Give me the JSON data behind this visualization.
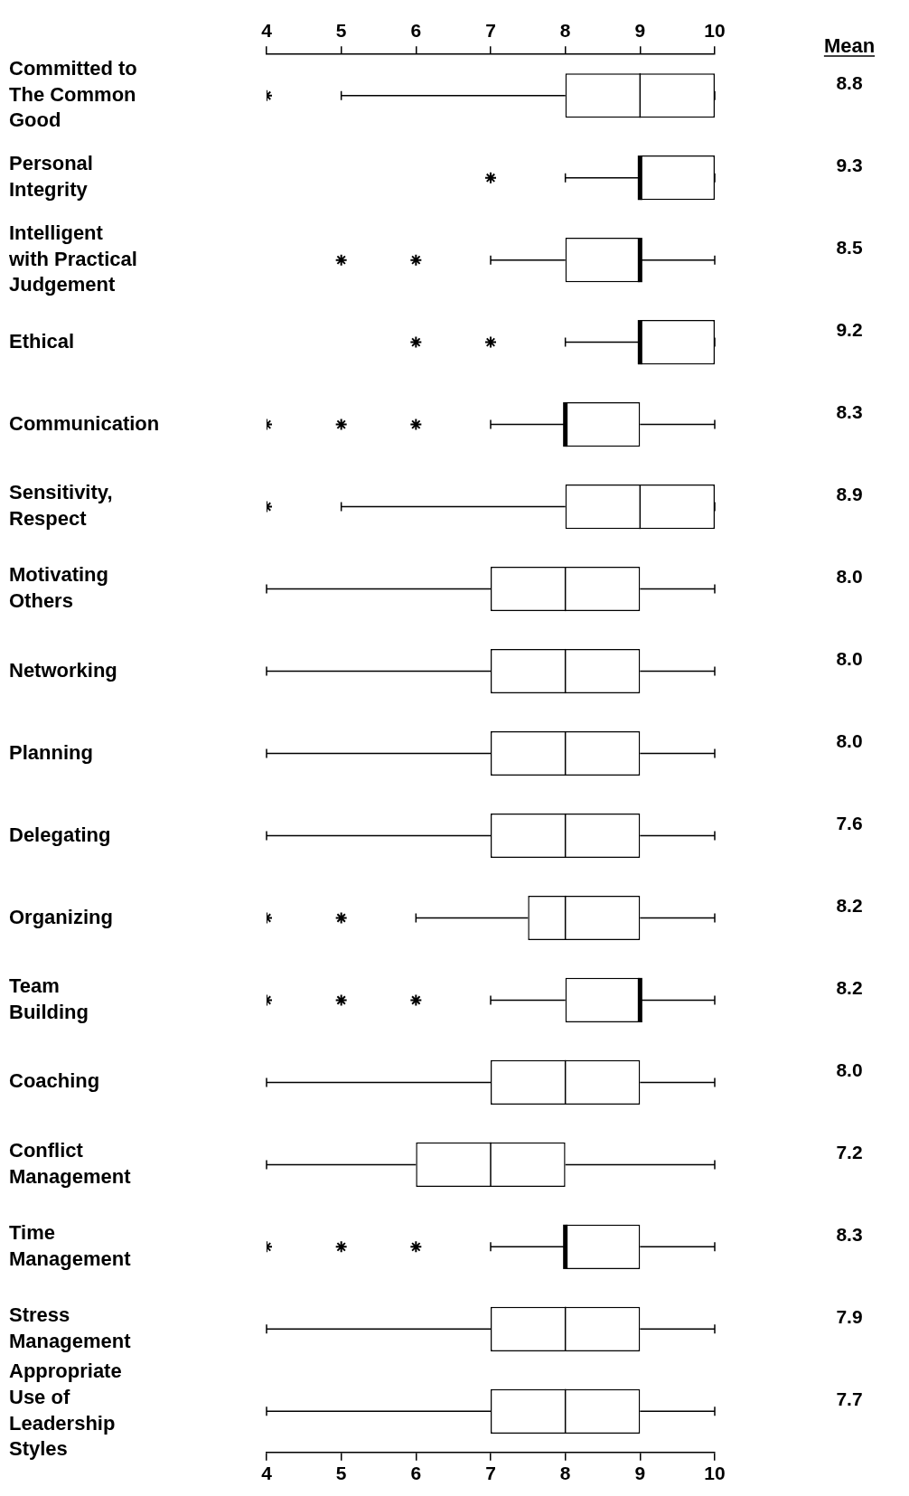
{
  "chart_data": {
    "type": "box",
    "orientation": "horizontal",
    "marker": "star",
    "legend": false,
    "grid": false,
    "categories": [
      "Committed to\nThe Common\nGood",
      "Personal\nIntegrity",
      "Intelligent\nwith Practical\nJudgement",
      "Ethical",
      "Communication",
      "Sensitivity,\nRespect",
      "Motivating\nOthers",
      "Networking",
      "Planning",
      "Delegating",
      "Organizing",
      "Team\nBuilding",
      "Coaching",
      "Conflict\nManagement",
      "Time\nManagement",
      "Stress\nManagement",
      "Appropriate\nUse of\nLeadership\nStyles"
    ],
    "boxes": [
      {
        "low": 5,
        "q1": 8,
        "median": 9,
        "q3": 10,
        "high": 10,
        "outliers": [
          4
        ]
      },
      {
        "low": 8,
        "q1": 9,
        "median": 9,
        "q3": 10,
        "high": 10,
        "outliers": [
          7
        ]
      },
      {
        "low": 7,
        "q1": 8,
        "median": 9,
        "q3": 9,
        "high": 10,
        "outliers": [
          5,
          6
        ]
      },
      {
        "low": 8,
        "q1": 9,
        "median": 9,
        "q3": 10,
        "high": 10,
        "outliers": [
          6,
          7
        ]
      },
      {
        "low": 7,
        "q1": 8,
        "median": 8,
        "q3": 9,
        "high": 10,
        "outliers": [
          4,
          5,
          6
        ]
      },
      {
        "low": 5,
        "q1": 8,
        "median": 9,
        "q3": 10,
        "high": 10,
        "outliers": [
          4
        ]
      },
      {
        "low": 4,
        "q1": 7,
        "median": 8,
        "q3": 9,
        "high": 10
      },
      {
        "low": 4,
        "q1": 7,
        "median": 8,
        "q3": 9,
        "high": 10
      },
      {
        "low": 4,
        "q1": 7,
        "median": 8,
        "q3": 9,
        "high": 10
      },
      {
        "low": 4,
        "q1": 7,
        "median": 8,
        "q3": 9,
        "high": 10
      },
      {
        "low": 6,
        "q1": 7.5,
        "median": 8,
        "q3": 9,
        "high": 10,
        "outliers": [
          4,
          5
        ]
      },
      {
        "low": 7,
        "q1": 8,
        "median": 9,
        "q3": 9,
        "high": 10,
        "outliers": [
          4,
          5,
          6
        ]
      },
      {
        "low": 4,
        "q1": 7,
        "median": 8,
        "q3": 9,
        "high": 10
      },
      {
        "low": 4,
        "q1": 6,
        "median": 7,
        "q3": 8,
        "high": 10
      },
      {
        "low": 7,
        "q1": 8,
        "median": 8,
        "q3": 9,
        "high": 10,
        "outliers": [
          4,
          5,
          6
        ]
      },
      {
        "low": 4,
        "q1": 7,
        "median": 8,
        "q3": 9,
        "high": 10
      },
      {
        "low": 4,
        "q1": 7,
        "median": 8,
        "q3": 9,
        "high": 10
      }
    ],
    "value_labels": [
      "8.8",
      "9.3",
      "8.5",
      "9.2",
      "8.3",
      "8.9",
      "8.0",
      "8.0",
      "8.0",
      "7.6",
      "8.2",
      "8.2",
      "8.0",
      "7.2",
      "8.3",
      "7.9",
      "7.7"
    ],
    "xlim": [
      4,
      10
    ],
    "xticks": [
      4,
      5,
      6,
      7,
      8,
      9,
      10
    ],
    "x2lim": [
      4,
      10
    ],
    "x2ticks": [
      4,
      5,
      6,
      7,
      8,
      9,
      10
    ],
    "annotations": [
      "Mean"
    ]
  }
}
